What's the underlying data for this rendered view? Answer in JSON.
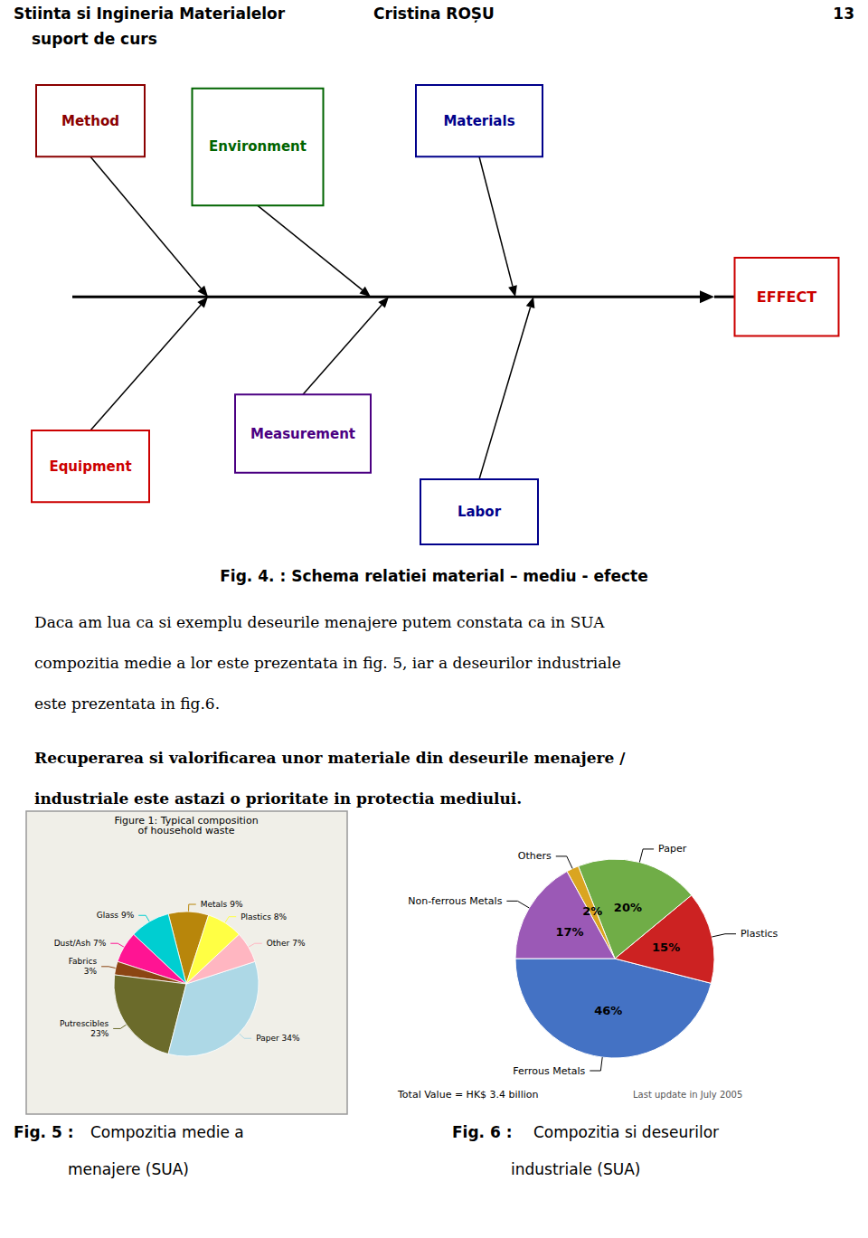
{
  "chart_data": [
    {
      "type": "text",
      "annotations": [
        "Stiinta si Ingineria Materialelor",
        "suport de curs",
        "Cristina ROȘU",
        "13"
      ]
    },
    {
      "type": "fishbone",
      "categories": [
        "Method",
        "Environment",
        "Materials",
        "Equipment",
        "Measurement",
        "Labor",
        "EFFECT"
      ],
      "colors": [
        "#8B0000",
        "#006400",
        "#00008B",
        "#CC0000",
        "#4B0082",
        "#00008B",
        "#CC0000"
      ],
      "annotations": [
        "Fig. 4. : Schema relatiei material – mediu - efecte"
      ]
    },
    {
      "type": "text",
      "annotations": [
        "Daca am lua ca si exemplu deseurile menajere putem constata ca in SUA",
        "compozitia medie a lor este prezentata in fig. 5, iar a deseurilor industriale",
        "este prezentata in fig.6.",
        "Recuperarea si valorificarea unor materiale din deseurile menajere /",
        "industriale este astazi o prioritate in protectia mediului."
      ]
    },
    {
      "type": "pie",
      "title": "Figure 1: Typical composition\nof household waste",
      "categories": [
        "Metals 9%",
        "Glass 9%",
        "Dust/Ash 7%",
        "Fabrics\n3%",
        "Putrescibles\n23%",
        "Paper 34%",
        "Other 7%",
        "Plastics 8%"
      ],
      "values": [
        9,
        9,
        7,
        3,
        23,
        34,
        7,
        8
      ],
      "colors": [
        "#B8860B",
        "#00CED1",
        "#FF1493",
        "#8B4513",
        "#6B6B2B",
        "#ADD8E6",
        "#FFB6C1",
        "#FFFF44"
      ],
      "annotations": [
        "Fig. 5 :",
        "Compozitia medie a",
        "menajere (SUA)"
      ]
    },
    {
      "type": "pie",
      "categories": [
        "Ferrous Metals",
        "Plastics",
        "Paper",
        "Others",
        "Non-ferrous Metals"
      ],
      "values": [
        46,
        15,
        20,
        2,
        17
      ],
      "value_labels": [
        "46%",
        "15%",
        "20%",
        "2%",
        "17%"
      ],
      "data_labels": true,
      "colors": [
        "#4472C4",
        "#CC2222",
        "#70AD47",
        "#DAA520",
        "#9B59B6"
      ],
      "annotations": [
        "Total Value = HK$ 3.4 billion",
        "Last update in July 2005",
        "Fig. 6 :",
        "Compozitia si deseurilor",
        "industriale (SUA)"
      ]
    }
  ]
}
